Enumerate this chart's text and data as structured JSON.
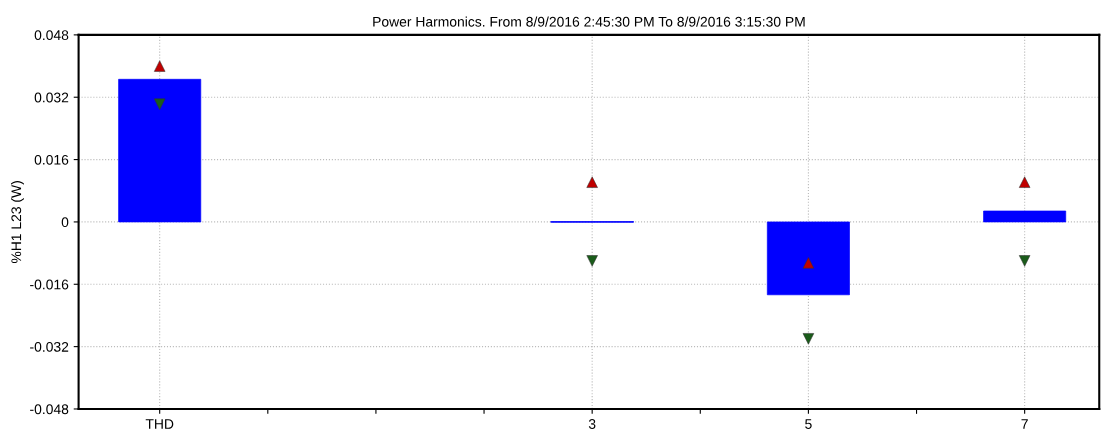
{
  "chart_data": {
    "type": "bar",
    "title": "Power Harmonics. From 8/9/2016 2:45:30 PM To 8/9/2016 3:15:30 PM",
    "ylabel": "%H1 L23 (W)",
    "categories": [
      "THD",
      null,
      null,
      null,
      "3",
      null,
      "5",
      null,
      "7"
    ],
    "series": [
      {
        "color": "#0000ff",
        "values": [
          0.0366,
          null,
          null,
          null,
          0,
          null,
          -0.0187,
          null,
          0.0028
        ]
      },
      {
        "type": "scatter",
        "marker": "triangle",
        "color": "#c00000",
        "values": [
          0.04,
          null,
          null,
          null,
          0.0102,
          null,
          -0.0105,
          null,
          0.0102
        ]
      },
      {
        "type": "scatter",
        "marker": "triangle_down",
        "color": "#1a5c1a",
        "values": [
          0.0302,
          null,
          null,
          null,
          -0.01,
          null,
          -0.03,
          null,
          -0.01
        ]
      }
    ],
    "ylim": [
      -0.048,
      0.048
    ],
    "yticks": [
      -0.048,
      -0.032,
      -0.016,
      0,
      0.016,
      0.032,
      0.048
    ],
    "grid": true
  }
}
